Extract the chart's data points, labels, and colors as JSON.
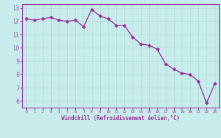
{
  "x": [
    0,
    1,
    2,
    3,
    4,
    5,
    6,
    7,
    8,
    9,
    10,
    11,
    12,
    13,
    14,
    15,
    16,
    17,
    18,
    19,
    20,
    21,
    22,
    23
  ],
  "y": [
    12.2,
    12.1,
    12.2,
    12.3,
    12.1,
    12.0,
    12.1,
    11.6,
    12.9,
    12.4,
    12.2,
    11.7,
    11.7,
    10.8,
    10.3,
    10.2,
    9.9,
    8.8,
    8.4,
    8.1,
    8.0,
    7.5,
    5.85,
    7.3
  ],
  "line_color": "#993399",
  "bg_color": "#c8ecec",
  "grid_color": "#a8d8d8",
  "xlabel": "Windchill (Refroidissement éolien,°C)",
  "xlim": [
    -0.5,
    23.5
  ],
  "ylim": [
    5.5,
    13.3
  ],
  "yticks": [
    6,
    7,
    8,
    9,
    10,
    11,
    12,
    13
  ],
  "xticks": [
    0,
    1,
    2,
    3,
    4,
    5,
    6,
    7,
    8,
    9,
    10,
    11,
    12,
    13,
    14,
    15,
    16,
    17,
    18,
    19,
    20,
    21,
    22,
    23
  ],
  "xlabel_color": "#993399",
  "tick_color": "#993399",
  "marker": "D",
  "marker_size": 2.5,
  "line_width": 1.0
}
